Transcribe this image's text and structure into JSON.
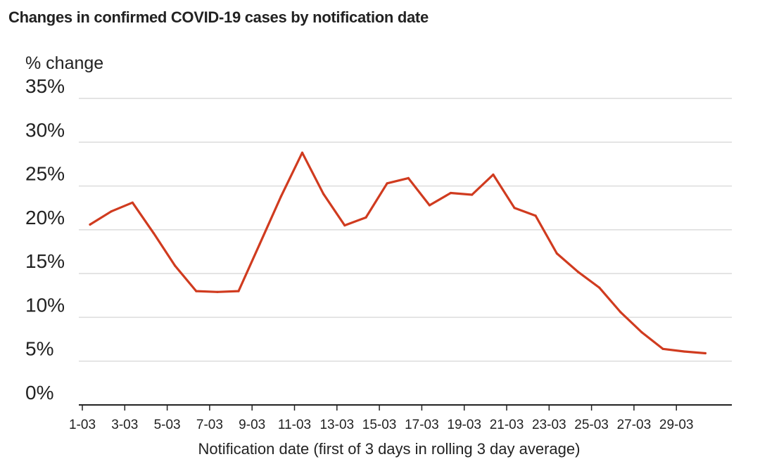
{
  "chart_data": {
    "type": "line",
    "title": "Changes in confirmed COVID-19 cases by notification date",
    "ylabel": "% change",
    "xlabel": "Notification date (first of 3 days in rolling 3 day average)",
    "x": [
      "1-03",
      "2-03",
      "3-03",
      "4-03",
      "5-03",
      "6-03",
      "7-03",
      "8-03",
      "9-03",
      "10-03",
      "11-03",
      "12-03",
      "13-03",
      "14-03",
      "15-03",
      "16-03",
      "17-03",
      "18-03",
      "19-03",
      "20-03",
      "21-03",
      "22-03",
      "23-03",
      "24-03",
      "25-03",
      "26-03",
      "27-03",
      "28-03",
      "29-03",
      "30-03"
    ],
    "x_tick_labels": [
      "1-03",
      "3-03",
      "5-03",
      "7-03",
      "9-03",
      "11-03",
      "13-03",
      "15-03",
      "17-03",
      "19-03",
      "21-03",
      "23-03",
      "25-03",
      "27-03",
      "29-03"
    ],
    "y_tick_labels": [
      "0%",
      "5%",
      "10%",
      "15%",
      "20%",
      "25%",
      "30%",
      "35%"
    ],
    "ylim": [
      0,
      35
    ],
    "grid": true,
    "series": [
      {
        "values": [
          20.6,
          22.1,
          23.1,
          19.6,
          15.9,
          13.0,
          12.9,
          13.0,
          18.4,
          23.8,
          28.8,
          24.1,
          20.5,
          21.4,
          25.3,
          25.9,
          22.8,
          24.2,
          24.0,
          26.3,
          22.5,
          21.6,
          17.3,
          15.2,
          13.4,
          10.6,
          8.3,
          6.4,
          6.1,
          5.9
        ]
      }
    ],
    "colors": {
      "line": "#d03b1f",
      "grid": "#dcdcdc",
      "axis": "#222222"
    }
  }
}
